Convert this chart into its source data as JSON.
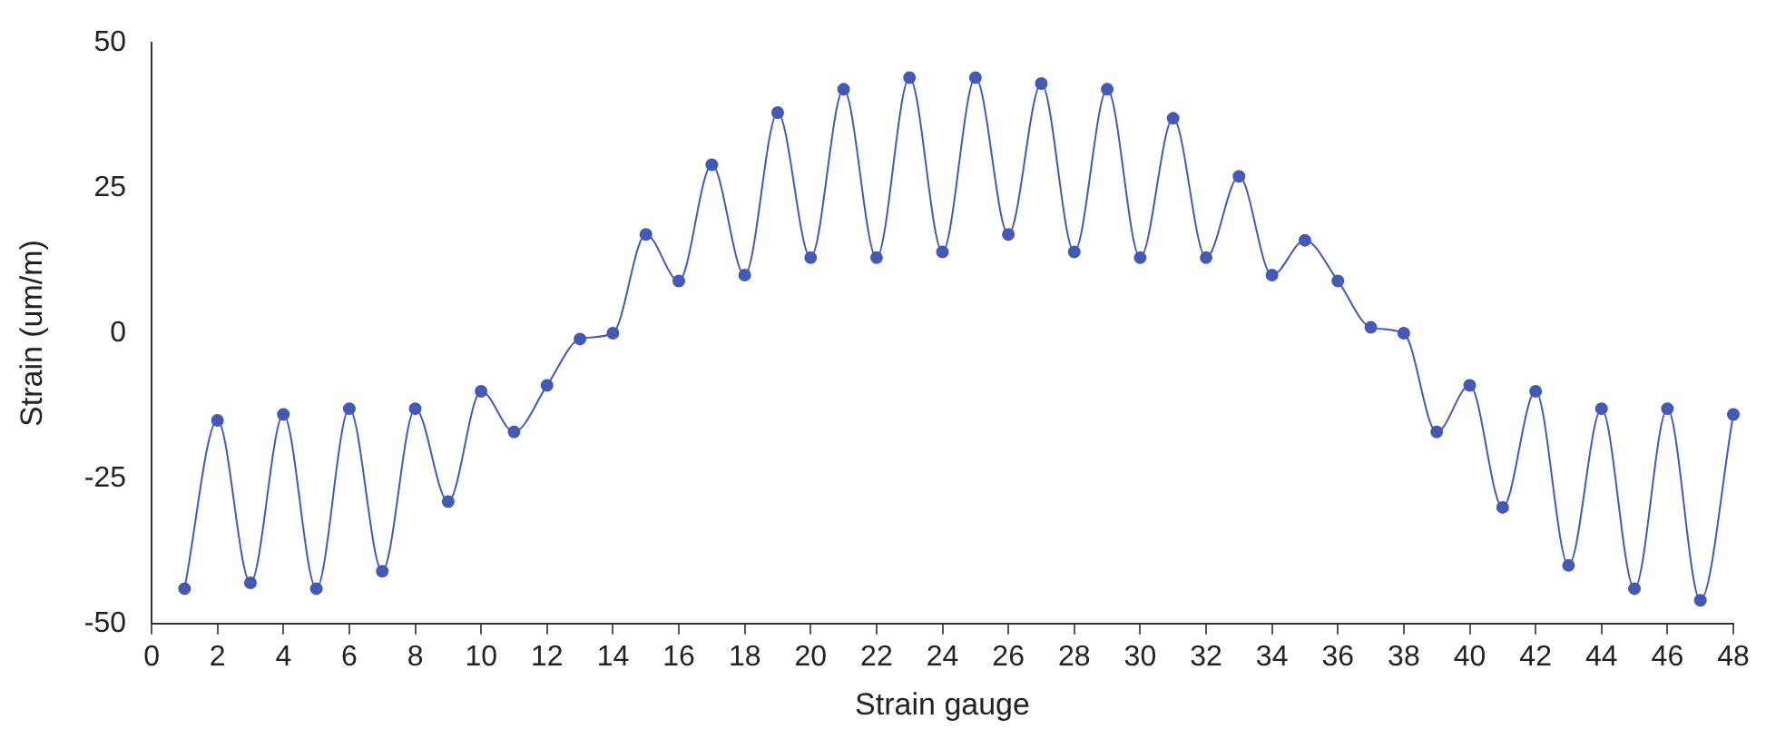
{
  "chart_data": {
    "type": "line",
    "xlabel": "Strain gauge",
    "ylabel": "Strain (um/m)",
    "x": [
      1,
      2,
      3,
      4,
      5,
      6,
      7,
      8,
      9,
      10,
      11,
      12,
      13,
      14,
      15,
      16,
      17,
      18,
      19,
      20,
      21,
      22,
      23,
      24,
      25,
      26,
      27,
      28,
      29,
      30,
      31,
      32,
      33,
      34,
      35,
      36,
      37,
      38,
      39,
      40,
      41,
      42,
      43,
      44,
      45,
      46,
      47,
      48
    ],
    "series": [
      {
        "color": "#4459b5",
        "values": [
          -44,
          -15,
          -43,
          -14,
          -44,
          -13,
          -41,
          -13,
          -29,
          -10,
          -17,
          -9,
          -1,
          0,
          17,
          9,
          29,
          10,
          38,
          13,
          42,
          13,
          44,
          14,
          44,
          17,
          43,
          14,
          42,
          13,
          37,
          13,
          27,
          10,
          16,
          9,
          1,
          0,
          -17,
          -9,
          -30,
          -10,
          -40,
          -13,
          -44,
          -13,
          -46,
          -14
        ]
      }
    ],
    "xlim": [
      0,
      48
    ],
    "xticks": [
      0,
      2,
      4,
      6,
      8,
      10,
      12,
      14,
      16,
      18,
      20,
      22,
      24,
      26,
      28,
      30,
      32,
      34,
      36,
      38,
      40,
      42,
      44,
      46,
      48
    ],
    "ylim": [
      -50,
      50
    ],
    "yticks": [
      -50,
      -25,
      0,
      25,
      50
    ],
    "grid": false,
    "legend": false,
    "marker": "circle",
    "line_style": "solid"
  }
}
